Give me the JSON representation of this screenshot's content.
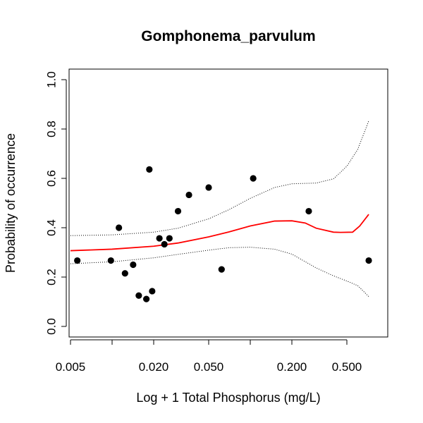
{
  "chart_data": {
    "type": "scatter",
    "title": "Gomphonema_parvulum",
    "xlabel": "Log + 1 Total Phosphorus (mg/L)",
    "ylabel": "Probability of occurrence",
    "x_scale": "log",
    "xlim": [
      0.005,
      0.8
    ],
    "ylim": [
      0,
      1
    ],
    "x_ticks": [
      0.005,
      0.01,
      0.02,
      0.05,
      0.1,
      0.2,
      0.5
    ],
    "x_tick_labels": [
      "0.005",
      "",
      "0.020",
      "0.050",
      "",
      "0.200",
      "0.500"
    ],
    "y_ticks": [
      0,
      0.2,
      0.4,
      0.6,
      0.8,
      1.0
    ],
    "y_tick_labels": [
      "0.0",
      "0.2",
      "0.4",
      "0.6",
      "0.8",
      "1.0"
    ],
    "grid": false,
    "points": [
      {
        "x": 0.0056,
        "y": 0.267
      },
      {
        "x": 0.0098,
        "y": 0.267
      },
      {
        "x": 0.0112,
        "y": 0.4
      },
      {
        "x": 0.0124,
        "y": 0.215
      },
      {
        "x": 0.0142,
        "y": 0.25
      },
      {
        "x": 0.0156,
        "y": 0.125
      },
      {
        "x": 0.0177,
        "y": 0.111
      },
      {
        "x": 0.0186,
        "y": 0.636
      },
      {
        "x": 0.0195,
        "y": 0.143
      },
      {
        "x": 0.022,
        "y": 0.357
      },
      {
        "x": 0.0239,
        "y": 0.333
      },
      {
        "x": 0.026,
        "y": 0.357
      },
      {
        "x": 0.03,
        "y": 0.467
      },
      {
        "x": 0.036,
        "y": 0.533
      },
      {
        "x": 0.05,
        "y": 0.563
      },
      {
        "x": 0.062,
        "y": 0.231
      },
      {
        "x": 0.105,
        "y": 0.6
      },
      {
        "x": 0.265,
        "y": 0.467
      },
      {
        "x": 0.72,
        "y": 0.267
      }
    ],
    "series": [
      {
        "kind": "fit",
        "color": "#ff0000",
        "style": "solid",
        "x": [
          0.005,
          0.01,
          0.02,
          0.03,
          0.05,
          0.07,
          0.1,
          0.15,
          0.2,
          0.25,
          0.3,
          0.4,
          0.45,
          0.55,
          0.62,
          0.72
        ],
        "y": [
          0.307,
          0.313,
          0.325,
          0.338,
          0.363,
          0.383,
          0.407,
          0.427,
          0.428,
          0.419,
          0.398,
          0.382,
          0.381,
          0.382,
          0.407,
          0.454
        ]
      },
      {
        "kind": "upper_ci",
        "color": "#000000",
        "style": "dotted",
        "x": [
          0.005,
          0.01,
          0.02,
          0.03,
          0.05,
          0.07,
          0.1,
          0.15,
          0.2,
          0.3,
          0.4,
          0.5,
          0.6,
          0.72
        ],
        "y": [
          0.368,
          0.371,
          0.382,
          0.398,
          0.436,
          0.473,
          0.519,
          0.563,
          0.578,
          0.581,
          0.598,
          0.649,
          0.718,
          0.833
        ]
      },
      {
        "kind": "lower_ci",
        "color": "#000000",
        "style": "dotted",
        "x": [
          0.005,
          0.01,
          0.02,
          0.03,
          0.05,
          0.07,
          0.1,
          0.15,
          0.2,
          0.3,
          0.4,
          0.5,
          0.6,
          0.72
        ],
        "y": [
          0.254,
          0.262,
          0.278,
          0.292,
          0.309,
          0.319,
          0.321,
          0.313,
          0.293,
          0.237,
          0.205,
          0.184,
          0.165,
          0.121
        ]
      }
    ]
  }
}
